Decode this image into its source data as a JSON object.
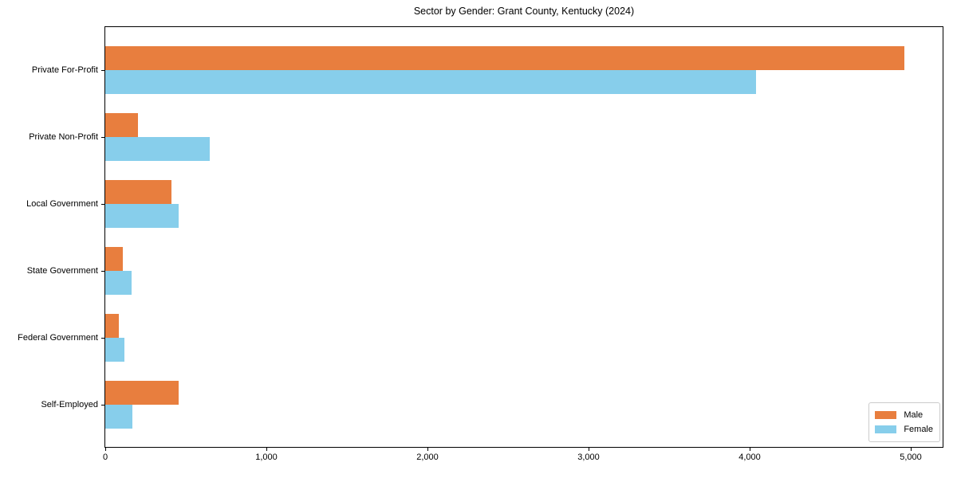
{
  "chart_data": {
    "type": "bar",
    "orientation": "horizontal",
    "title": "Sector by Gender: Grant County, Kentucky (2024)",
    "categories": [
      "Private For-Profit",
      "Private Non-Profit",
      "Local Government",
      "State Government",
      "Federal Government",
      "Self-Employed"
    ],
    "series": [
      {
        "name": "Male",
        "color": "#E87E3E",
        "values": [
          4960,
          205,
          410,
          110,
          85,
          455
        ]
      },
      {
        "name": "Female",
        "color": "#87CEEB",
        "values": [
          4040,
          650,
          455,
          165,
          120,
          170
        ]
      }
    ],
    "xlim": [
      0,
      5200
    ],
    "x_tick_values": [
      0,
      1000,
      2000,
      3000,
      4000,
      5000
    ],
    "x_tick_labels": [
      "0",
      "1,000",
      "2,000",
      "3,000",
      "4,000",
      "5,000"
    ],
    "xlabel": "",
    "ylabel": "",
    "grid": false,
    "legend": {
      "position": "lower-right",
      "entries": [
        "Male",
        "Female"
      ]
    },
    "axis_color": "#000000",
    "background_color": "#ffffff"
  }
}
